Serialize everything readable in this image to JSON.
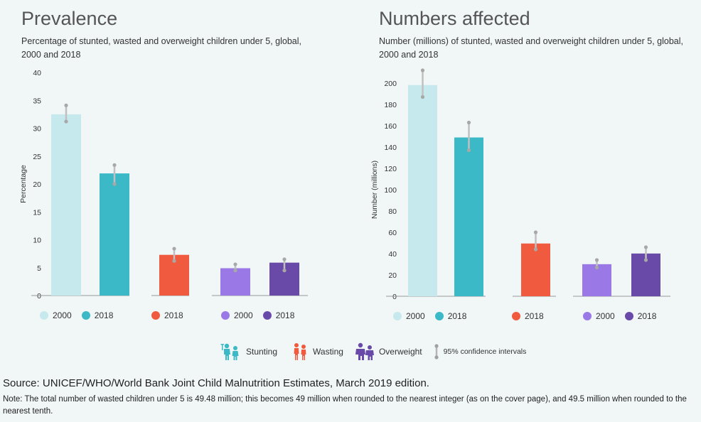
{
  "left": {
    "title": "Prevalence",
    "subtitle": "Percentage of stunted, wasted and overweight children under 5, global, 2000 and 2018"
  },
  "right": {
    "title": "Numbers affected",
    "subtitle": "Number (millions) of stunted, wasted and overweight children under 5, global, 2000 and 2018"
  },
  "colors": {
    "stunting_2000": "#c5e9ec",
    "stunting_2018": "#3bb9c6",
    "wasting_2018": "#f05a3e",
    "overweight_2000": "#9a78e6",
    "overweight_2018": "#6a4aa8",
    "ci": "#c0c0c0"
  },
  "chart_data": [
    {
      "type": "bar",
      "title": "Prevalence",
      "ylabel": "Percentage",
      "ylim": [
        0,
        40
      ],
      "yticks": [
        "0",
        "5",
        "10",
        "15",
        "20",
        "25",
        "30",
        "35",
        "40"
      ],
      "bars": [
        {
          "group": "Stunting",
          "year": "2000",
          "value": 32.5,
          "ci_low": 31.2,
          "ci_high": 34.1,
          "color_key": "stunting_2000"
        },
        {
          "group": "Stunting",
          "year": "2018",
          "value": 21.9,
          "ci_low": 20.0,
          "ci_high": 23.4,
          "color_key": "stunting_2018"
        },
        {
          "group": "Wasting",
          "year": "2018",
          "value": 7.3,
          "ci_low": 6.2,
          "ci_high": 8.4,
          "color_key": "wasting_2018"
        },
        {
          "group": "Overweight",
          "year": "2000",
          "value": 4.9,
          "ci_low": 4.5,
          "ci_high": 5.6,
          "color_key": "overweight_2000"
        },
        {
          "group": "Overweight",
          "year": "2018",
          "value": 5.9,
          "ci_low": 4.5,
          "ci_high": 6.5,
          "color_key": "overweight_2018"
        }
      ]
    },
    {
      "type": "bar",
      "title": "Numbers affected",
      "ylabel": "Number (millions)",
      "ylim": [
        0,
        200
      ],
      "yticks": [
        "0",
        "20",
        "40",
        "60",
        "80",
        "100",
        "120",
        "140",
        "160",
        "180",
        "200"
      ],
      "bars": [
        {
          "group": "Stunting",
          "year": "2000",
          "value": 198.2,
          "ci_low": 187.0,
          "ci_high": 212.0,
          "color_key": "stunting_2000"
        },
        {
          "group": "Stunting",
          "year": "2018",
          "value": 149.0,
          "ci_low": 137.0,
          "ci_high": 163.0,
          "color_key": "stunting_2018"
        },
        {
          "group": "Wasting",
          "year": "2018",
          "value": 49.5,
          "ci_low": 44.0,
          "ci_high": 60.0,
          "color_key": "wasting_2018"
        },
        {
          "group": "Overweight",
          "year": "2000",
          "value": 30.1,
          "ci_low": 27.0,
          "ci_high": 34.0,
          "color_key": "overweight_2000"
        },
        {
          "group": "Overweight",
          "year": "2018",
          "value": 40.1,
          "ci_low": 34.0,
          "ci_high": 46.0,
          "color_key": "overweight_2018"
        }
      ]
    }
  ],
  "year_legend": {
    "stunting": [
      "2000",
      "2018"
    ],
    "wasting": [
      "2018"
    ],
    "overweight": [
      "2000",
      "2018"
    ]
  },
  "key": {
    "stunting": "Stunting",
    "wasting": "Wasting",
    "overweight": "Overweight",
    "ci": "95% confidence intervals"
  },
  "source": "Source:  UNICEF/WHO/World Bank Joint Child Malnutrition Estimates, March 2019 edition.",
  "note": "Note: The total number of wasted children under 5 is 49.48 million; this becomes 49 million when rounded to the nearest integer (as on the cover page), and 49.5 million when rounded to the nearest tenth."
}
